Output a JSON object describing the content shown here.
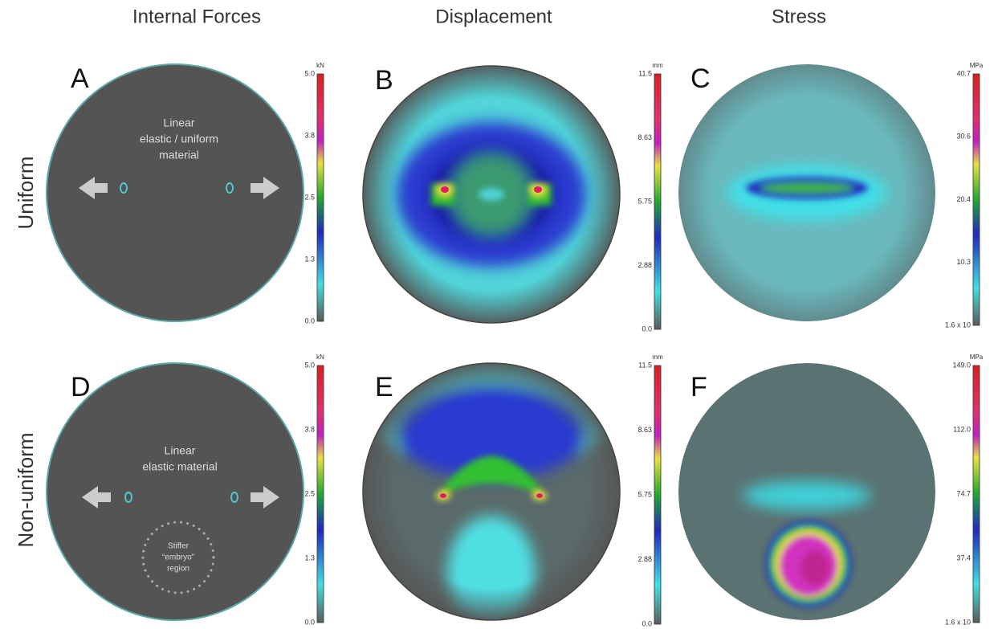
{
  "columns": [
    "Internal Forces",
    "Displacement",
    "Stress"
  ],
  "rows": [
    "Uniform",
    "Non-uniform"
  ],
  "panels": [
    {
      "letter": "A",
      "annotations": [
        "Linear",
        "elastic / uniform",
        "material"
      ]
    },
    {
      "letter": "B"
    },
    {
      "letter": "C"
    },
    {
      "letter": "D",
      "annotations": [
        "Linear",
        "elastic material"
      ],
      "region_label": [
        "Stiffer",
        "“embryo”",
        "region"
      ]
    },
    {
      "letter": "E"
    },
    {
      "letter": "F"
    }
  ],
  "colorbars": [
    {
      "unit": "kN",
      "ticks": [
        "5.0",
        "3.8",
        "2.5",
        "1.3",
        "0.0"
      ]
    },
    {
      "unit": "mm",
      "ticks": [
        "11.5",
        "8.63",
        "5.75",
        "2.88",
        "0.0"
      ]
    },
    {
      "unit": "MPa",
      "ticks": [
        "40.7",
        "30.6",
        "20.4",
        "10.3",
        "1.6 x 10"
      ]
    },
    {
      "unit": "kN",
      "ticks": [
        "5.0",
        "3.8",
        "2.5",
        "1.3",
        "0.0"
      ]
    },
    {
      "unit": "mm",
      "ticks": [
        "11.5",
        "8.63",
        "5.75",
        "2.88",
        "0.0"
      ]
    },
    {
      "unit": "MPa",
      "ticks": [
        "149.0",
        "112.0",
        "74.7",
        "37.4",
        "1.6 x 10"
      ]
    }
  ]
}
